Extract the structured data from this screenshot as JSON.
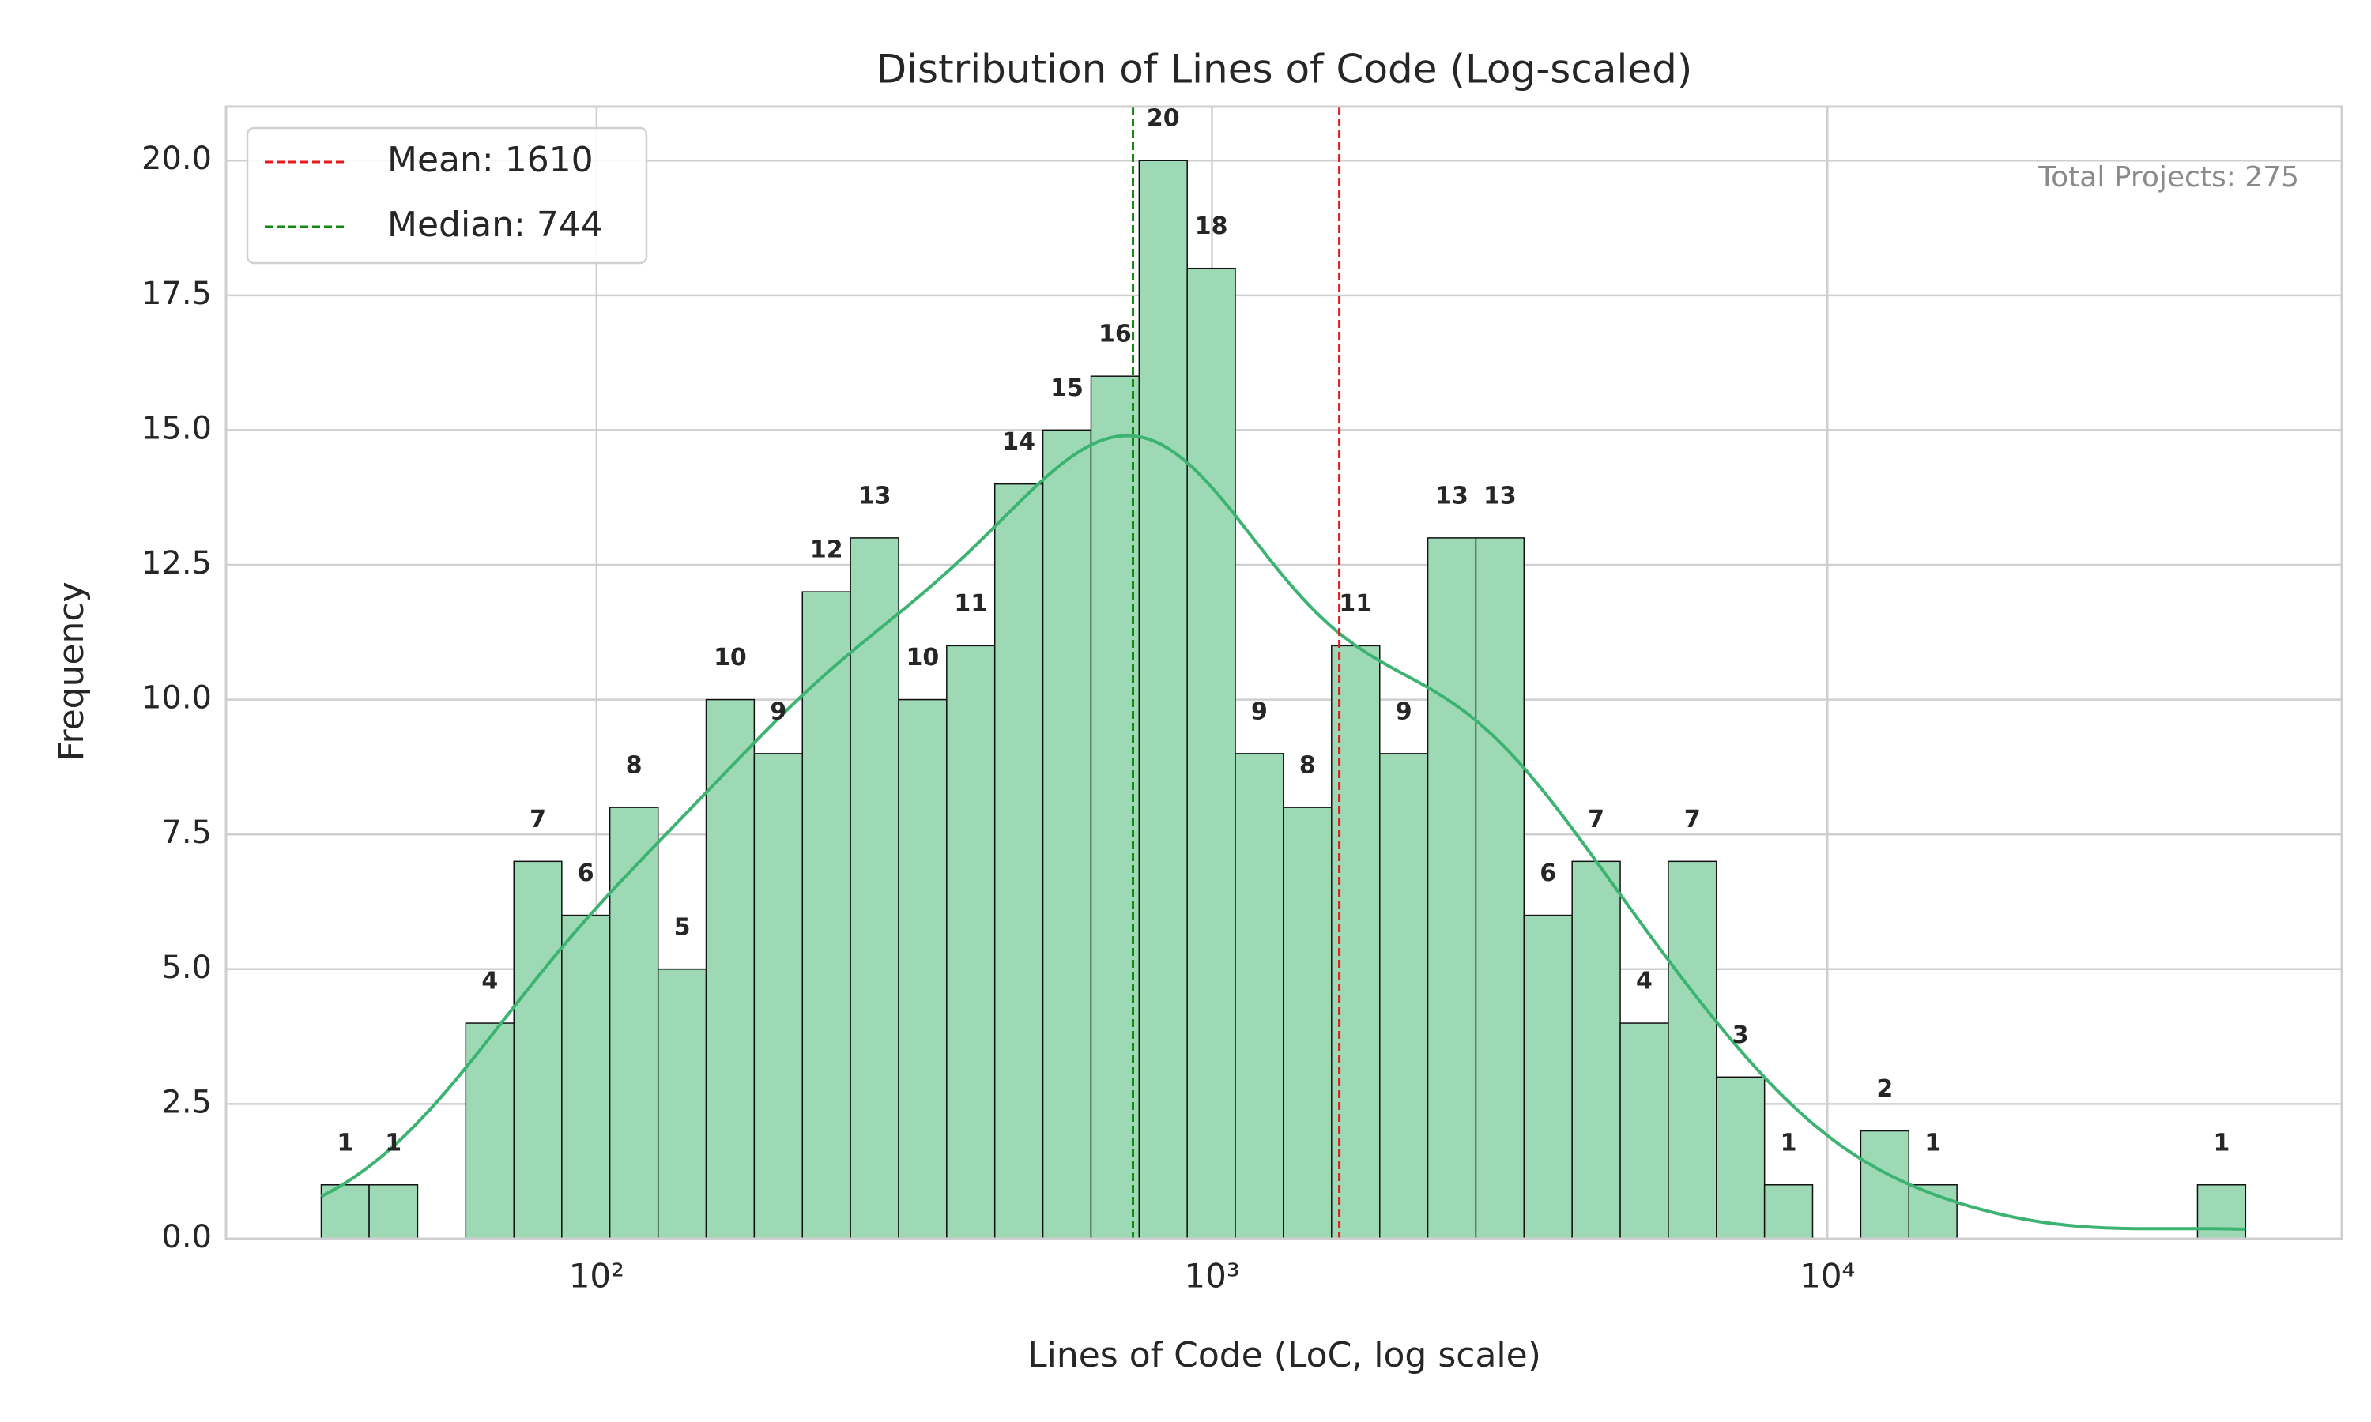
{
  "chart_data": {
    "type": "histogram",
    "title": "Distribution of Lines of Code (Log-scaled)",
    "x_label": "Lines of Code (LoC, log scale)",
    "y_label": "Frequency",
    "annotation": "Total Projects: 275",
    "log_x": true,
    "grid": true,
    "legend": "upper left",
    "color": "#9dd9b5",
    "kde_color": "#3cb371",
    "bins": [
      35.7,
      42.7,
      51.2,
      61.3,
      73.4,
      87.8,
      105.1,
      125.9,
      150.7,
      180.4,
      216.0,
      258.6,
      309.6,
      370.6,
      443.7,
      531.2,
      636.0,
      761.4,
      911.5,
      1091,
      1306,
      1564,
      1873,
      2242,
      2684,
      3213,
      3847,
      4606,
      5514,
      6601,
      7903,
      9461,
      11327,
      13561,
      16235,
      19436,
      23269,
      27857,
      33350,
      39926,
      47800
    ],
    "values": [
      1,
      1,
      0,
      4,
      7,
      6,
      8,
      5,
      10,
      9,
      12,
      13,
      10,
      11,
      14,
      15,
      16,
      20,
      18,
      9,
      8,
      11,
      9,
      13,
      13,
      6,
      7,
      4,
      7,
      3,
      1,
      0,
      2,
      1,
      0,
      0,
      0,
      0,
      0,
      1
    ],
    "lines": [
      {
        "name": "Mean: 1610",
        "value": 1610,
        "color": "#e8191c"
      },
      {
        "name": "Median: 744",
        "value": 744,
        "color": "#108a10"
      }
    ],
    "xlim": [
      25,
      68500
    ],
    "xticks": [
      {
        "value": 100,
        "label": "10²"
      },
      {
        "value": 1000,
        "label": "10³"
      },
      {
        "value": 10000,
        "label": "10⁴"
      }
    ],
    "ylim": [
      0,
      21
    ],
    "yticks": [
      {
        "value": 0,
        "label": "0.0"
      },
      2.5,
      {
        "value": 5,
        "label": "5.0"
      },
      7.5,
      {
        "value": 10,
        "label": "10.0"
      },
      12.5,
      {
        "value": 15,
        "label": "15.0"
      },
      17.5,
      {
        "value": 20,
        "label": "20.0"
      }
    ]
  }
}
